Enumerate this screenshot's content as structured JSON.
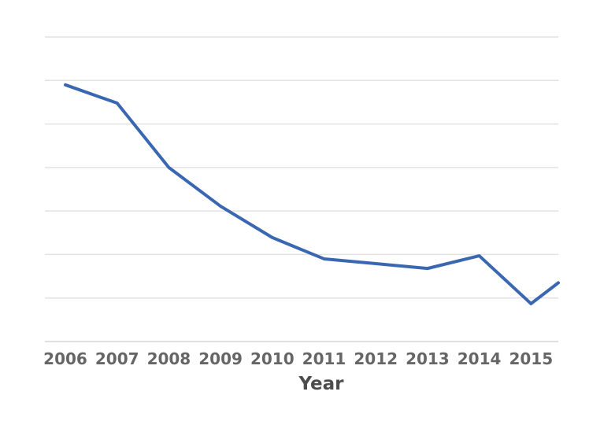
{
  "chart_data": {
    "type": "line",
    "title": "",
    "xlabel": "Year",
    "ylabel": "",
    "categories": [
      "2006",
      "2007",
      "2008",
      "2009",
      "2010",
      "2011",
      "2012",
      "2013",
      "2014",
      "2015"
    ],
    "values": [
      5.9,
      5.48,
      4.0,
      3.11,
      2.39,
      1.9,
      1.79,
      1.68,
      1.97,
      0.87
    ],
    "clipped_end_segment": {
      "x_offset_years_from_first": 9.55,
      "value": 1.35,
      "note": "line continues rising past 2015 and is cut off at the right edge of the plot area"
    },
    "ylim": [
      0,
      7
    ],
    "y_gridline_step": 1,
    "y_tick_labels_visible": false,
    "y_units": "unlabeled gridline units (no y-axis tick labels visible)",
    "grid": "horizontal",
    "legend": "none",
    "colors": {
      "line": "#3a67b1",
      "gridline": "#e2e2e2",
      "axis_line": "#d6d6d6",
      "tick_label": "#666666",
      "axis_title": "#4c4c4c",
      "background": "#ffffff"
    }
  }
}
